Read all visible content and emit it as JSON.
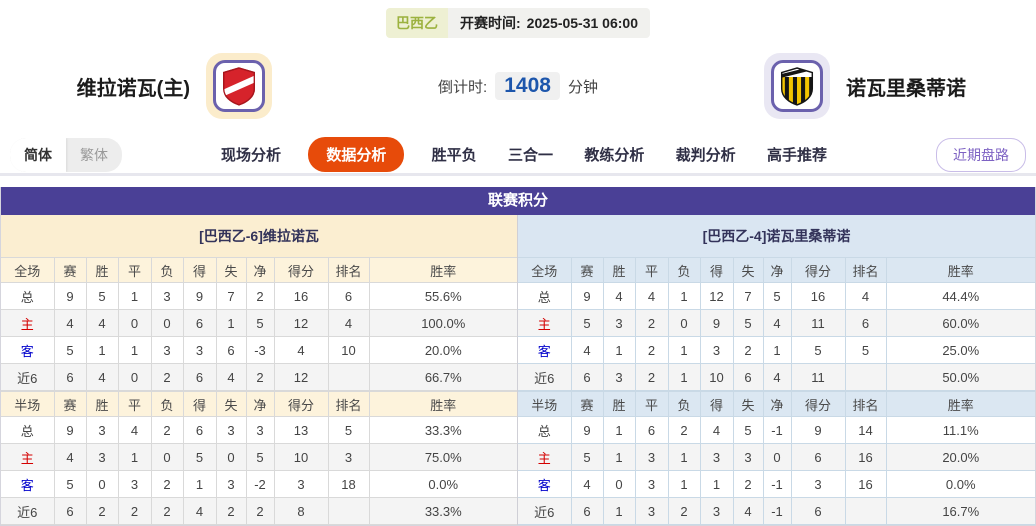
{
  "meta": {
    "league": "巴西乙",
    "kickoff_label": "开赛时间:",
    "kickoff_time": "2025-05-31 06:00"
  },
  "teams": {
    "home": {
      "name": "维拉诺瓦(主)"
    },
    "away": {
      "name": "诺瓦里桑蒂诺"
    }
  },
  "countdown": {
    "label": "倒计时:",
    "value": "1408",
    "unit": "分钟"
  },
  "lang_toggle": {
    "simplified": "简体",
    "traditional": "繁体"
  },
  "nav": {
    "tabs": [
      {
        "label": "现场分析",
        "active": false
      },
      {
        "label": "数据分析",
        "active": true
      },
      {
        "label": "胜平负",
        "active": false
      },
      {
        "label": "三合一",
        "active": false
      },
      {
        "label": "教练分析",
        "active": false
      },
      {
        "label": "裁判分析",
        "active": false
      },
      {
        "label": "高手推荐",
        "active": false
      }
    ],
    "recent_button": "近期盘路"
  },
  "standings": {
    "title": "联赛积分",
    "home": {
      "subtitle": "[巴西乙-6]维拉诺瓦",
      "sections": [
        {
          "headers": [
            "全场",
            "赛",
            "胜",
            "平",
            "负",
            "得",
            "失",
            "净",
            "得分",
            "排名",
            "胜率"
          ],
          "rows": [
            {
              "label": "总",
              "type": "total",
              "cells": [
                "9",
                "5",
                "1",
                "3",
                "9",
                "7",
                "2",
                "16",
                "6",
                "55.6%"
              ]
            },
            {
              "label": "主",
              "type": "home",
              "cells": [
                "4",
                "4",
                "0",
                "0",
                "6",
                "1",
                "5",
                "12",
                "4",
                "100.0%"
              ]
            },
            {
              "label": "客",
              "type": "away",
              "cells": [
                "5",
                "1",
                "1",
                "3",
                "3",
                "6",
                "-3",
                "4",
                "10",
                "20.0%"
              ]
            },
            {
              "label": "近6",
              "type": "recent",
              "cells": [
                "6",
                "4",
                "0",
                "2",
                "6",
                "4",
                "2",
                "12",
                "",
                "66.7%"
              ]
            }
          ]
        },
        {
          "headers": [
            "半场",
            "赛",
            "胜",
            "平",
            "负",
            "得",
            "失",
            "净",
            "得分",
            "排名",
            "胜率"
          ],
          "rows": [
            {
              "label": "总",
              "type": "total",
              "cells": [
                "9",
                "3",
                "4",
                "2",
                "6",
                "3",
                "3",
                "13",
                "5",
                "33.3%"
              ]
            },
            {
              "label": "主",
              "type": "home",
              "cells": [
                "4",
                "3",
                "1",
                "0",
                "5",
                "0",
                "5",
                "10",
                "3",
                "75.0%"
              ]
            },
            {
              "label": "客",
              "type": "away",
              "cells": [
                "5",
                "0",
                "3",
                "2",
                "1",
                "3",
                "-2",
                "3",
                "18",
                "0.0%"
              ]
            },
            {
              "label": "近6",
              "type": "recent",
              "cells": [
                "6",
                "2",
                "2",
                "2",
                "4",
                "2",
                "2",
                "8",
                "",
                "33.3%"
              ]
            }
          ]
        }
      ]
    },
    "away": {
      "subtitle": "[巴西乙-4]诺瓦里桑蒂诺",
      "sections": [
        {
          "headers": [
            "全场",
            "赛",
            "胜",
            "平",
            "负",
            "得",
            "失",
            "净",
            "得分",
            "排名",
            "胜率"
          ],
          "rows": [
            {
              "label": "总",
              "type": "total",
              "cells": [
                "9",
                "4",
                "4",
                "1",
                "12",
                "7",
                "5",
                "16",
                "4",
                "44.4%"
              ]
            },
            {
              "label": "主",
              "type": "home",
              "cells": [
                "5",
                "3",
                "2",
                "0",
                "9",
                "5",
                "4",
                "11",
                "6",
                "60.0%"
              ]
            },
            {
              "label": "客",
              "type": "away",
              "cells": [
                "4",
                "1",
                "2",
                "1",
                "3",
                "2",
                "1",
                "5",
                "5",
                "25.0%"
              ]
            },
            {
              "label": "近6",
              "type": "recent",
              "cells": [
                "6",
                "3",
                "2",
                "1",
                "10",
                "6",
                "4",
                "11",
                "",
                "50.0%"
              ]
            }
          ]
        },
        {
          "headers": [
            "半场",
            "赛",
            "胜",
            "平",
            "负",
            "得",
            "失",
            "净",
            "得分",
            "排名",
            "胜率"
          ],
          "rows": [
            {
              "label": "总",
              "type": "total",
              "cells": [
                "9",
                "1",
                "6",
                "2",
                "4",
                "5",
                "-1",
                "9",
                "14",
                "11.1%"
              ]
            },
            {
              "label": "主",
              "type": "home",
              "cells": [
                "5",
                "1",
                "3",
                "1",
                "3",
                "3",
                "0",
                "6",
                "16",
                "20.0%"
              ]
            },
            {
              "label": "客",
              "type": "away",
              "cells": [
                "4",
                "0",
                "3",
                "1",
                "1",
                "2",
                "-1",
                "3",
                "16",
                "0.0%"
              ]
            },
            {
              "label": "近6",
              "type": "recent",
              "cells": [
                "6",
                "1",
                "3",
                "2",
                "3",
                "4",
                "-1",
                "6",
                "",
                "16.7%"
              ]
            }
          ]
        }
      ]
    }
  },
  "colors": {
    "header_purple": "#4a4096",
    "active_tab_orange": "#e74b0a",
    "home_row_red": "#d40000",
    "away_row_blue": "#0000cc",
    "countdown_blue": "#1d56ac",
    "league_green": "#9cb23f",
    "recent_button_purple": "#7d62c3",
    "home_panel_cream": "#fbeed1",
    "away_panel_blue": "#dae6f2"
  }
}
